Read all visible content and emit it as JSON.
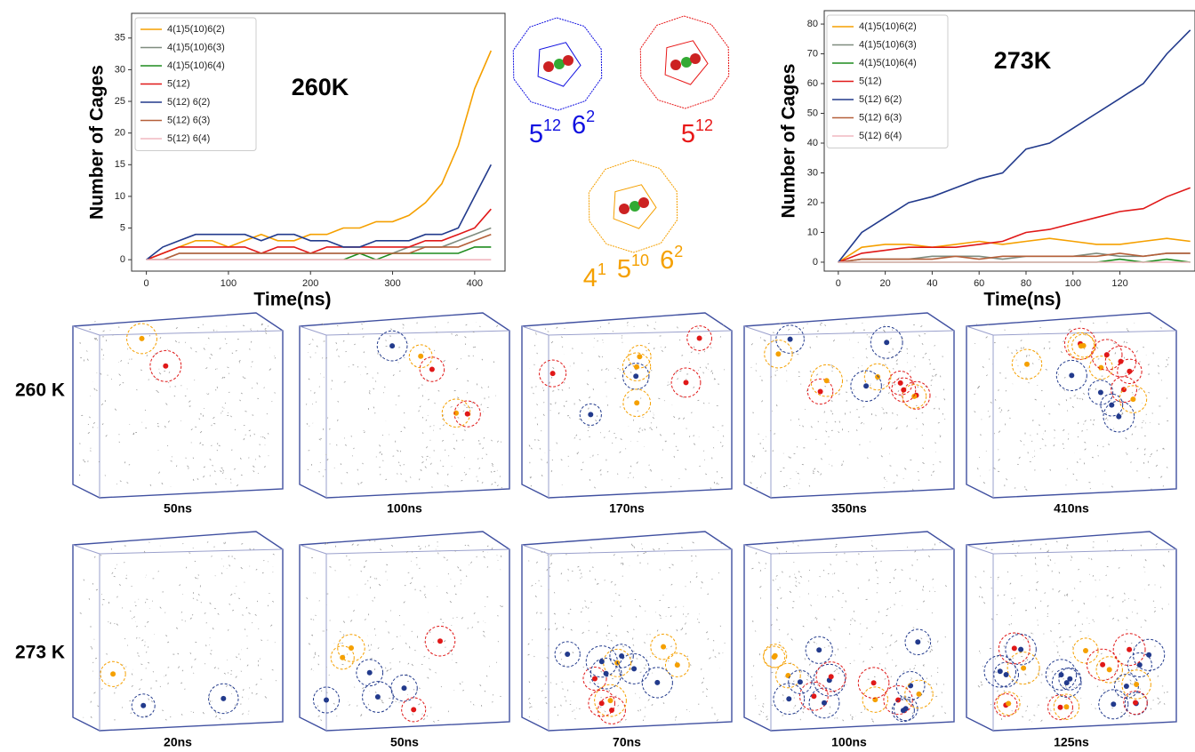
{
  "chart_data": [
    {
      "type": "line",
      "annotation": "260K",
      "xlabel": "Time(ns)",
      "ylabel": "Number of Cages",
      "x": [
        0,
        20,
        40,
        60,
        80,
        100,
        120,
        140,
        160,
        180,
        200,
        220,
        240,
        260,
        280,
        300,
        320,
        340,
        360,
        380,
        400,
        420
      ],
      "xlim": [
        -18,
        437
      ],
      "xticks": [
        0,
        100,
        200,
        300,
        400
      ],
      "ylim": [
        -1.8,
        38.9
      ],
      "yticks": [
        0,
        5,
        10,
        15,
        20,
        25,
        30,
        35
      ],
      "legend": "upper left",
      "series": [
        {
          "name": "4(1)5(10)6(2)",
          "color": "#f5a000",
          "values": [
            0,
            1,
            2,
            3,
            3,
            2,
            3,
            4,
            3,
            3,
            4,
            4,
            5,
            5,
            6,
            6,
            7,
            9,
            12,
            18,
            27,
            33
          ]
        },
        {
          "name": "4(1)5(10)6(3)",
          "color": "#7f8c7f",
          "values": [
            0,
            0,
            1,
            1,
            1,
            1,
            1,
            1,
            1,
            1,
            1,
            1,
            1,
            1,
            1,
            1,
            2,
            2,
            2,
            3,
            4,
            5
          ]
        },
        {
          "name": "4(1)5(10)6(4)",
          "color": "#1e8c1e",
          "values": [
            0,
            0,
            0,
            0,
            0,
            0,
            0,
            0,
            0,
            0,
            0,
            0,
            0,
            1,
            0,
            1,
            1,
            1,
            1,
            1,
            2,
            2
          ]
        },
        {
          "name": "5(12)",
          "color": "#e01818",
          "values": [
            0,
            1,
            2,
            2,
            2,
            2,
            2,
            1,
            2,
            2,
            1,
            2,
            2,
            2,
            2,
            2,
            2,
            3,
            3,
            4,
            5,
            8
          ]
        },
        {
          "name": "5(12) 6(2)",
          "color": "#223a8c",
          "values": [
            0,
            2,
            3,
            4,
            4,
            4,
            4,
            3,
            4,
            4,
            3,
            3,
            2,
            2,
            3,
            3,
            3,
            4,
            4,
            5,
            10,
            15
          ]
        },
        {
          "name": "5(12) 6(3)",
          "color": "#b5603a",
          "values": [
            0,
            0,
            1,
            1,
            1,
            1,
            1,
            1,
            1,
            1,
            1,
            1,
            1,
            1,
            1,
            1,
            1,
            2,
            2,
            2,
            3,
            4
          ]
        },
        {
          "name": "5(12) 6(4)",
          "color": "#f0b8c0",
          "values": [
            0,
            0,
            0,
            0,
            0,
            0,
            0,
            0,
            0,
            0,
            0,
            0,
            0,
            0,
            0,
            0,
            0,
            0,
            0,
            0,
            0,
            0
          ]
        }
      ]
    },
    {
      "type": "line",
      "annotation": "273K",
      "xlabel": "Time(ns)",
      "ylabel": "Number of Cages",
      "x": [
        0,
        10,
        20,
        30,
        40,
        50,
        60,
        70,
        80,
        90,
        100,
        110,
        120,
        130,
        140,
        150
      ],
      "xlim": [
        -6,
        152
      ],
      "xticks": [
        0,
        20,
        40,
        60,
        80,
        100,
        120
      ],
      "ylim": [
        -3,
        84.5
      ],
      "yticks": [
        0,
        10,
        20,
        30,
        40,
        50,
        60,
        70,
        80
      ],
      "legend": "upper left",
      "series": [
        {
          "name": "4(1)5(10)6(2)",
          "color": "#f5a000",
          "values": [
            0,
            5,
            6,
            6,
            5,
            6,
            7,
            6,
            7,
            8,
            7,
            6,
            6,
            7,
            8,
            7
          ]
        },
        {
          "name": "4(1)5(10)6(3)",
          "color": "#7f8c7f",
          "values": [
            0,
            1,
            1,
            1,
            2,
            2,
            2,
            1,
            2,
            2,
            2,
            3,
            2,
            2,
            3,
            3
          ]
        },
        {
          "name": "4(1)5(10)6(4)",
          "color": "#1e8c1e",
          "values": [
            0,
            0,
            0,
            0,
            0,
            0,
            0,
            0,
            0,
            0,
            0,
            0,
            1,
            0,
            1,
            0
          ]
        },
        {
          "name": "5(12)",
          "color": "#e01818",
          "values": [
            0,
            3,
            4,
            5,
            5,
            5,
            6,
            7,
            10,
            11,
            13,
            15,
            17,
            18,
            22,
            25
          ]
        },
        {
          "name": "5(12) 6(2)",
          "color": "#223a8c",
          "values": [
            0,
            10,
            15,
            20,
            22,
            25,
            28,
            30,
            38,
            40,
            45,
            50,
            55,
            60,
            70,
            78
          ]
        },
        {
          "name": "5(12) 6(3)",
          "color": "#b5603a",
          "values": [
            0,
            1,
            1,
            1,
            1,
            2,
            1,
            2,
            2,
            2,
            2,
            2,
            3,
            2,
            3,
            3
          ]
        },
        {
          "name": "5(12) 6(4)",
          "color": "#f0b8c0",
          "values": [
            0,
            0,
            0,
            0,
            0,
            0,
            0,
            0,
            0,
            0,
            0,
            0,
            0,
            0,
            0,
            0
          ]
        }
      ]
    }
  ],
  "cages": [
    {
      "color": "#1010e0",
      "label": [
        {
          "base": "5",
          "sup": "12"
        },
        {
          "base": "6",
          "sup": "2"
        }
      ]
    },
    {
      "color": "#e81818",
      "label": [
        {
          "base": "5",
          "sup": "12"
        }
      ]
    },
    {
      "color": "#f5a000",
      "label": [
        {
          "base": "4",
          "sup": "1"
        },
        {
          "base": "5",
          "sup": "10"
        },
        {
          "base": "6",
          "sup": "2"
        }
      ]
    }
  ],
  "snapshots": [
    {
      "row_label": "260 K",
      "times": [
        "50ns",
        "100ns",
        "170ns",
        "350ns",
        "410ns"
      ]
    },
    {
      "row_label": "273 K",
      "times": [
        "20ns",
        "50ns",
        "70ns",
        "100ns",
        "125ns"
      ]
    }
  ]
}
